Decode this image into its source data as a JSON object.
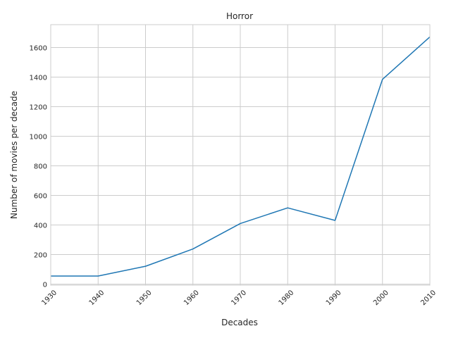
{
  "chart_data": {
    "type": "line",
    "title": "Horror",
    "xlabel": "Decades",
    "ylabel": "Number of movies per decade",
    "x": [
      1930,
      1940,
      1950,
      1960,
      1970,
      1980,
      1990,
      2000,
      2010
    ],
    "x_tick_labels": [
      "1930",
      "1940",
      "1950",
      "1960",
      "1970",
      "1980",
      "1990",
      "2000",
      "2010"
    ],
    "y_ticks": [
      0,
      200,
      400,
      600,
      800,
      1000,
      1200,
      1400,
      1600
    ],
    "y_tick_labels": [
      "0",
      "200",
      "400",
      "600",
      "800",
      "1000",
      "1200",
      "1400",
      "1600"
    ],
    "xlim": [
      1930,
      2010
    ],
    "ylim": [
      -7,
      1755
    ],
    "grid": true,
    "series": [
      {
        "values": [
          55,
          55,
          121,
          238,
          410,
          516,
          431,
          1385,
          1672
        ],
        "color": "#1f77b4"
      }
    ]
  }
}
